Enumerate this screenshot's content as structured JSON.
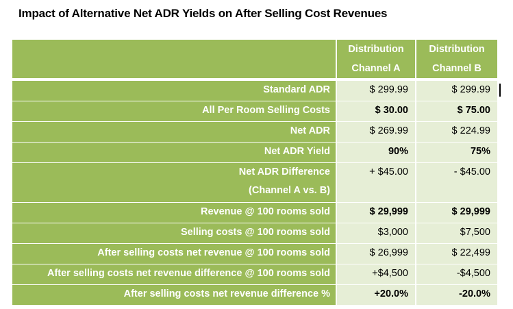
{
  "title": "Impact of Alternative Net ADR Yields on After Selling Cost Revenues",
  "columns": [
    "Distribution Channel A",
    "Distribution Channel B"
  ],
  "colors": {
    "label_bg": "#9bbb59",
    "value_bg": "#e6eed6"
  },
  "rows": [
    {
      "label": "Standard ADR",
      "a": "$ 299.99",
      "b": "$ 299.99",
      "bold": false
    },
    {
      "label": "All Per Room Selling Costs",
      "a": "$ 30.00",
      "b": "$ 75.00",
      "bold": true
    },
    {
      "label": "Net ADR",
      "a": "$ 269.99",
      "b": "$ 224.99",
      "bold": false
    },
    {
      "label": "Net ADR Yield",
      "a": "90%",
      "b": "75%",
      "bold": true
    },
    {
      "label": "Net ADR Difference",
      "label2": "(Channel A vs. B)",
      "a": "+ $45.00",
      "b": "- $45.00",
      "bold": false
    },
    {
      "label": "Revenue @ 100 rooms sold",
      "a": "$ 29,999",
      "b": "$ 29,999",
      "bold": true
    },
    {
      "label": "Selling costs @ 100 rooms sold",
      "a": "$3,000",
      "b": "$7,500",
      "bold": false
    },
    {
      "label": "After selling costs net revenue @ 100 rooms sold",
      "a": "$ 26,999",
      "b": "$ 22,499",
      "bold": false
    },
    {
      "label": "After selling costs net revenue difference @ 100 rooms sold",
      "a": "+$4,500",
      "b": "-$4,500",
      "bold": false
    },
    {
      "label": "After selling costs net revenue difference %",
      "a": "+20.0%",
      "b": "-20.0%",
      "bold": true
    }
  ]
}
